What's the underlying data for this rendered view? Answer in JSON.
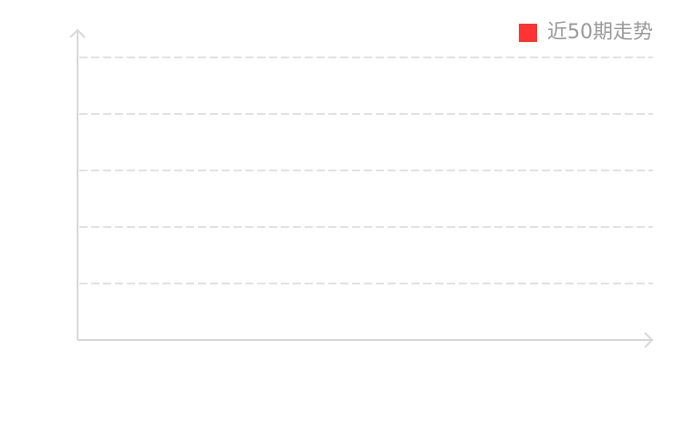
{
  "chart_data": {
    "type": "line",
    "title": "",
    "xlabel": "",
    "ylabel": "",
    "categories": [],
    "series": [
      {
        "name": "近50期走势",
        "values": [],
        "color": "#ff3333"
      }
    ],
    "grid": true,
    "grid_style": "dashed",
    "legend_position": "top-right",
    "colors": {
      "axis": "#d8d8d8",
      "grid": "#d8d8d8",
      "legend_text": "#9a9a9a"
    }
  }
}
